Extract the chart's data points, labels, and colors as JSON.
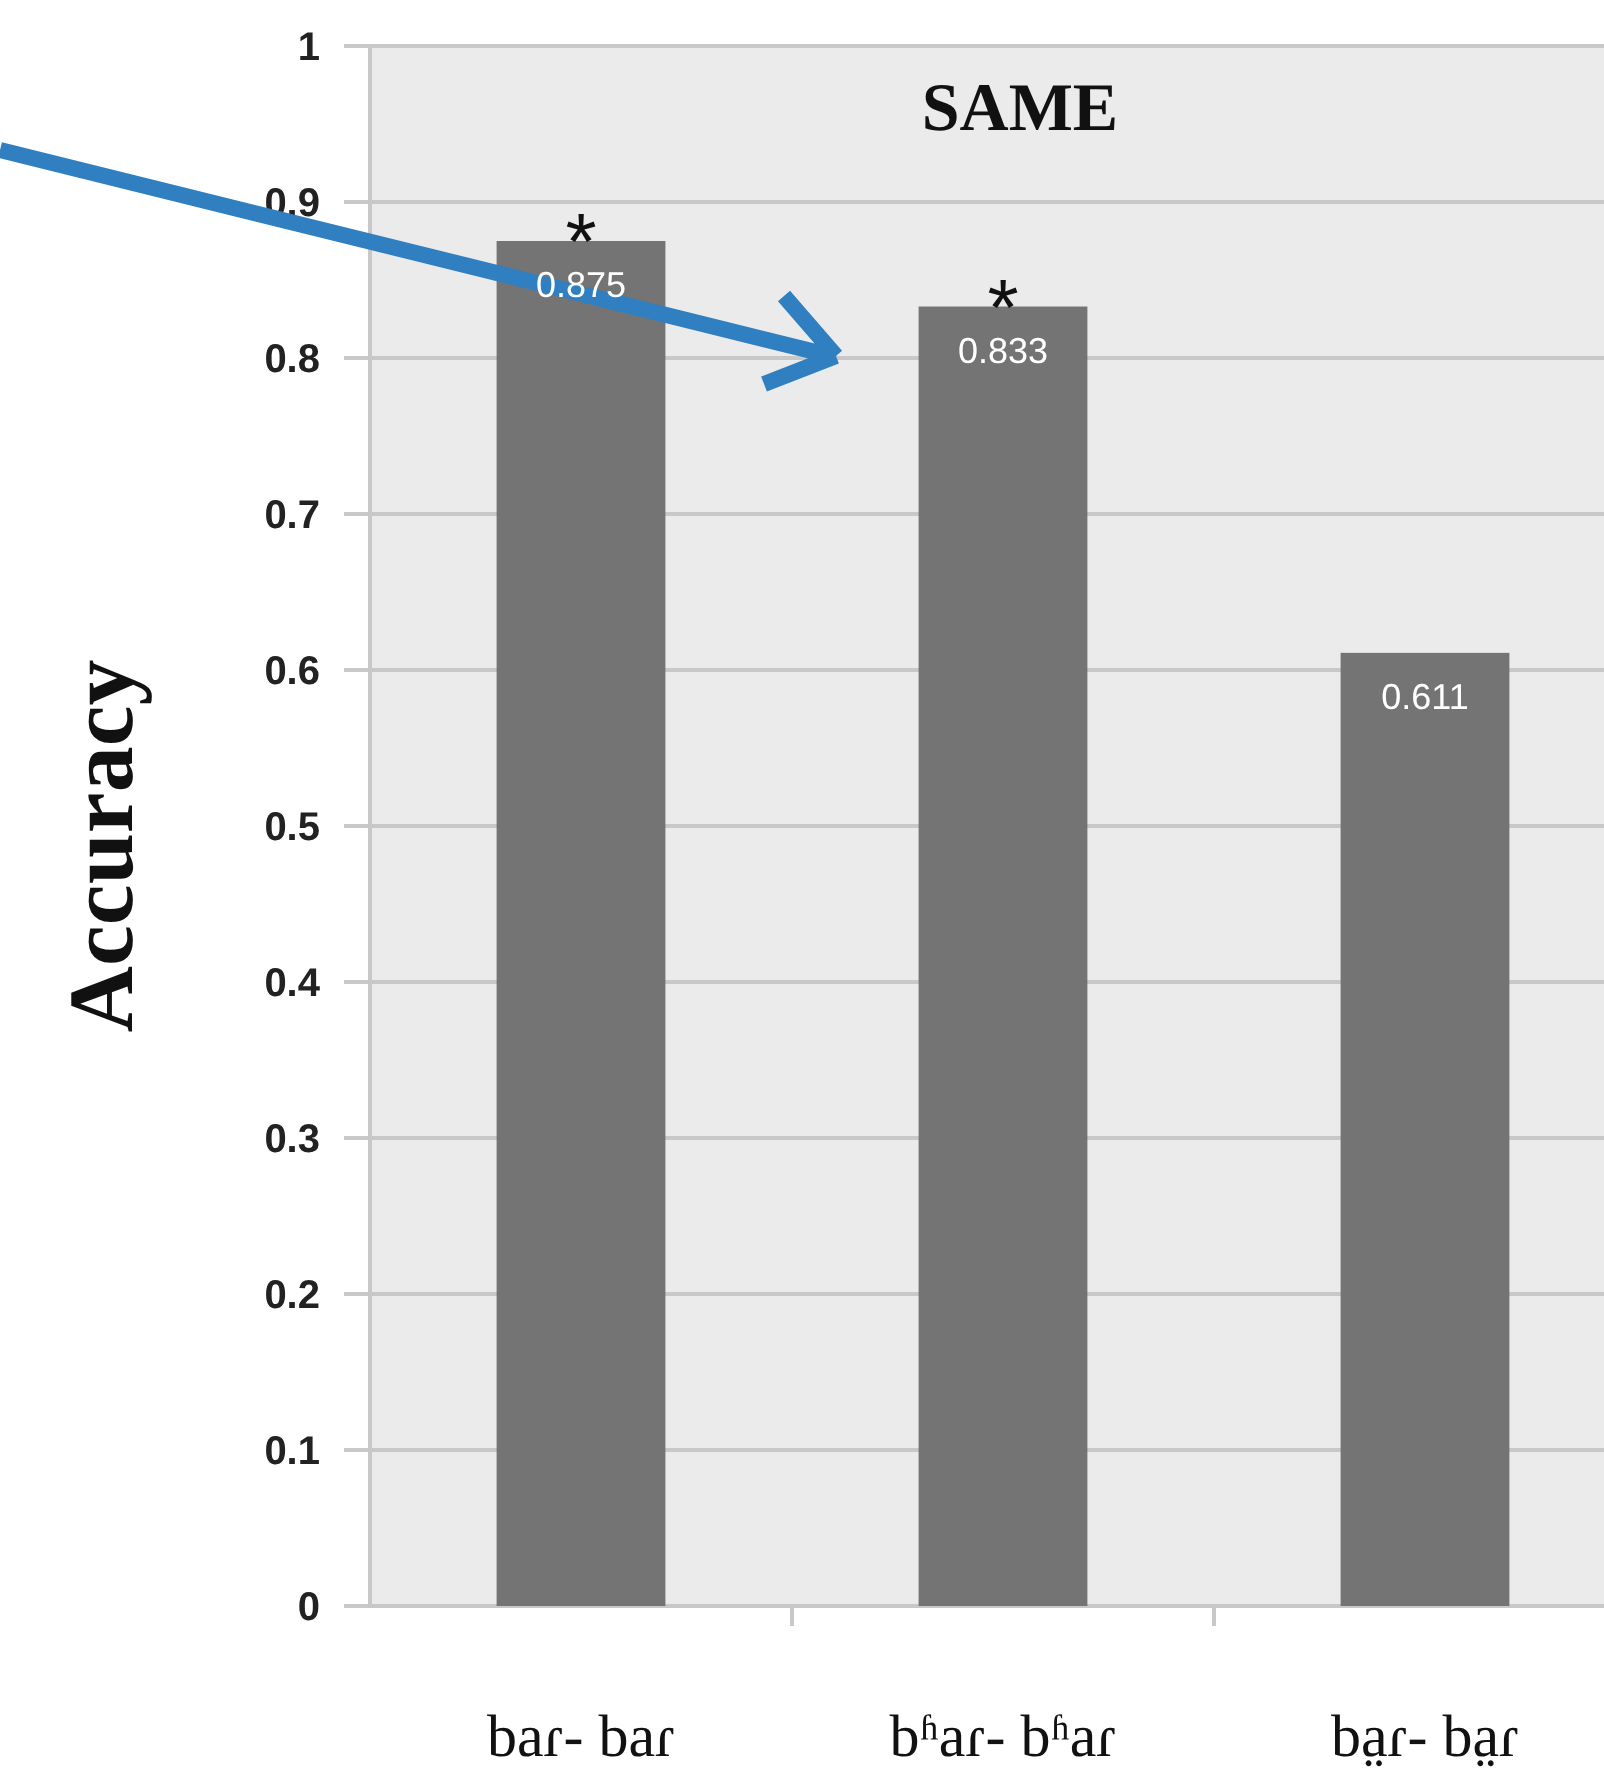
{
  "chart_data": {
    "type": "bar",
    "title": "SAME",
    "ylabel": "Accuracy",
    "categories": [
      "baɾ- baɾ",
      "bʱaɾ- bʱaɾ",
      "ba̤ɾ- ba̤ɾ"
    ],
    "values": [
      0.875,
      0.833,
      0.611
    ],
    "color": "#747474",
    "data_labels": true,
    "ylim": [
      0,
      1
    ],
    "yticks": [
      0,
      0.1,
      0.2,
      0.3,
      0.4,
      0.5,
      0.6,
      0.7,
      0.8,
      0.9,
      1
    ],
    "grid": "y",
    "annotations": [
      {
        "text": "*",
        "x": "baɾ- baɾ",
        "y": 0.875
      },
      {
        "text": "*",
        "x": "bʱaɾ- bʱaɾ",
        "y": 0.833
      }
    ]
  }
}
